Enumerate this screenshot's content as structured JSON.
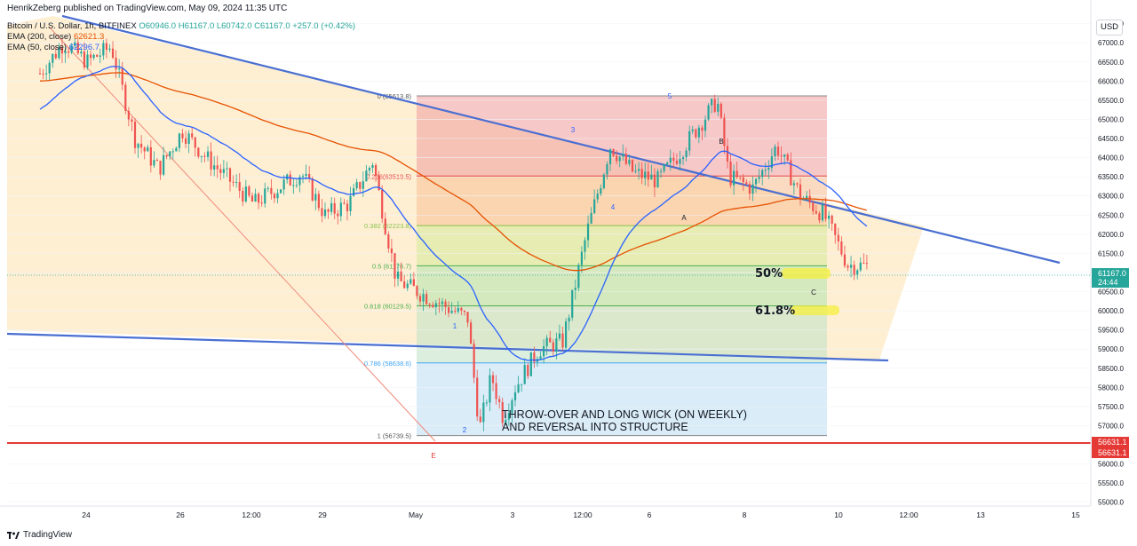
{
  "header": {
    "published": "HenrikZeberg published on TradingView.com, May 09, 2024 11:35 UTC"
  },
  "legend": {
    "symbol": "Bitcoin / U.S. Dollar, 1h, BITFINEX",
    "ohlc": "O60946.0 H61167.0 L60742.0 C61167.0 +257.0 (+0.42%)",
    "ema200_label": "EMA (200, close)",
    "ema200_value": "62621.3",
    "ema50_label": "EMA (50, close)",
    "ema50_value": "62296.7"
  },
  "currency_button": "USD",
  "brand": {
    "name": "TradingView"
  },
  "colors": {
    "up": "#26a69a",
    "down": "#ef5350",
    "ema200": "#e65100",
    "ema50": "#2962ff",
    "trendline": "#4a6fd1",
    "support": "#e53935",
    "wedge_fill": "#fde9c4"
  },
  "price_labels": {
    "last": "61167.0",
    "countdown": "24:44",
    "support_1": "56631.1",
    "support_2": "56631.1"
  },
  "fib": {
    "levels": [
      {
        "ratio": 0,
        "label": "0 (65613.8)",
        "price": 65613.8
      },
      {
        "ratio": 0.236,
        "label": "0.236(63519.5)",
        "price": 63519.5
      },
      {
        "ratio": 0.382,
        "label": "0.382 (62223.8)",
        "price": 62223.8
      },
      {
        "ratio": 0.5,
        "label": "0.5 (61176.7)",
        "price": 61176.7
      },
      {
        "ratio": 0.618,
        "label": "0.618 (60129.5)",
        "price": 60129.5
      },
      {
        "ratio": 0.786,
        "label": "0.786 (58638.6)",
        "price": 58638.6
      },
      {
        "ratio": 1,
        "label": "1 (56739.5)",
        "price": 56739.5
      }
    ]
  },
  "annotations": {
    "fifty": "50%",
    "sixtyone": "61.8%",
    "note_line1": "THROW-OVER AND LONG WICK (ON WEEKLY)",
    "note_line2": "AND REVERSAL INTO STRUCTURE",
    "waves": [
      "1",
      "2",
      "3",
      "4",
      "5",
      "A",
      "B",
      "C",
      "E"
    ]
  },
  "chart_data": {
    "type": "candlestick",
    "symbol": "Bitcoin / U.S. Dollar",
    "timeframe": "1h",
    "exchange": "BITFINEX",
    "x_ticks": [
      "24",
      "26",
      "12:00",
      "29",
      "May",
      "3",
      "12:00",
      "6",
      "8",
      "10",
      "12:00",
      "13",
      "15"
    ],
    "y_ticks": [
      55000,
      55500,
      56000,
      56500,
      57000,
      57500,
      58000,
      58500,
      59000,
      59500,
      60000,
      60500,
      61000,
      61500,
      62000,
      62500,
      63000,
      63500,
      64000,
      64500,
      65000,
      65500,
      66000,
      66500,
      67000,
      67500
    ],
    "ylim": [
      54900,
      67700
    ],
    "price_path": [
      {
        "x": "Apr 23 00:00",
        "close": 66200
      },
      {
        "x": "Apr 23 12:00",
        "close": 67000
      },
      {
        "x": "Apr 24 00:00",
        "close": 66500
      },
      {
        "x": "Apr 24 12:00",
        "close": 66900
      },
      {
        "x": "Apr 25 00:00",
        "close": 64500
      },
      {
        "x": "Apr 25 12:00",
        "close": 63700
      },
      {
        "x": "Apr 26 00:00",
        "close": 64700
      },
      {
        "x": "Apr 26 12:00",
        "close": 64000
      },
      {
        "x": "Apr 27 12:00",
        "close": 62800
      },
      {
        "x": "Apr 28 12:00",
        "close": 63600
      },
      {
        "x": "Apr 29 00:00",
        "close": 62500
      },
      {
        "x": "Apr 29 12:00",
        "close": 62800
      },
      {
        "x": "Apr 30 00:00",
        "close": 63900
      },
      {
        "x": "Apr 30 12:00",
        "close": 60800
      },
      {
        "x": "May 1 00:00",
        "close": 59800
      },
      {
        "x": "May 1 06:00",
        "close": 56900
      },
      {
        "x": "May 1 12:00",
        "close": 58300
      },
      {
        "x": "May 1 18:00",
        "close": 57200
      },
      {
        "x": "May 2 00:00",
        "close": 58000
      },
      {
        "x": "May 2 12:00",
        "close": 59000
      },
      {
        "x": "May 3 00:00",
        "close": 59200
      },
      {
        "x": "May 3 12:00",
        "close": 62000
      },
      {
        "x": "May 4 00:00",
        "close": 64300
      },
      {
        "x": "May 4 12:00",
        "close": 63600
      },
      {
        "x": "May 5 00:00",
        "close": 63400
      },
      {
        "x": "May 5 12:00",
        "close": 64200
      },
      {
        "x": "May 6 06:00",
        "close": 65500
      },
      {
        "x": "May 6 12:00",
        "close": 63500
      },
      {
        "x": "May 7 00:00",
        "close": 63200
      },
      {
        "x": "May 7 12:00",
        "close": 64300
      },
      {
        "x": "May 8 00:00",
        "close": 63000
      },
      {
        "x": "May 8 12:00",
        "close": 62500
      },
      {
        "x": "May 9 00:00",
        "close": 61200
      },
      {
        "x": "May 9 11:00",
        "close": 61167
      }
    ],
    "series": [
      {
        "name": "EMA (200, close)",
        "last": 62621.3
      },
      {
        "name": "EMA (50, close)",
        "last": 62296.7
      }
    ],
    "last_price": 61167.0,
    "support_level": 56631.1
  }
}
